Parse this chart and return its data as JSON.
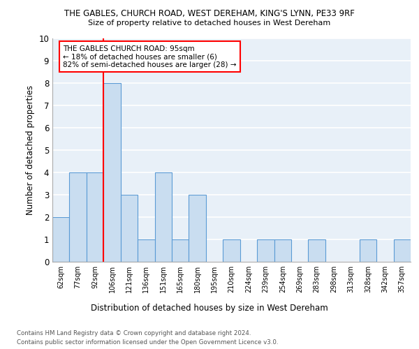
{
  "title": "THE GABLES, CHURCH ROAD, WEST DEREHAM, KING'S LYNN, PE33 9RF",
  "subtitle": "Size of property relative to detached houses in West Dereham",
  "xlabel": "Distribution of detached houses by size in West Dereham",
  "ylabel": "Number of detached properties",
  "categories": [
    "62sqm",
    "77sqm",
    "92sqm",
    "106sqm",
    "121sqm",
    "136sqm",
    "151sqm",
    "165sqm",
    "180sqm",
    "195sqm",
    "210sqm",
    "224sqm",
    "239sqm",
    "254sqm",
    "269sqm",
    "283sqm",
    "298sqm",
    "313sqm",
    "328sqm",
    "342sqm",
    "357sqm"
  ],
  "values": [
    2,
    4,
    4,
    8,
    3,
    1,
    4,
    1,
    3,
    0,
    1,
    0,
    1,
    1,
    0,
    1,
    0,
    0,
    1,
    0,
    1
  ],
  "bar_color": "#c9ddf0",
  "bar_edge_color": "#5b9bd5",
  "ylim": [
    0,
    10
  ],
  "yticks": [
    0,
    1,
    2,
    3,
    4,
    5,
    6,
    7,
    8,
    9,
    10
  ],
  "red_line_x": 2.5,
  "annotation_title": "THE GABLES CHURCH ROAD: 95sqm",
  "annotation_line1": "← 18% of detached houses are smaller (6)",
  "annotation_line2": "82% of semi-detached houses are larger (28) →",
  "footer1": "Contains HM Land Registry data © Crown copyright and database right 2024.",
  "footer2": "Contains public sector information licensed under the Open Government Licence v3.0.",
  "background_color": "#e8f0f8",
  "grid_color": "#ffffff"
}
